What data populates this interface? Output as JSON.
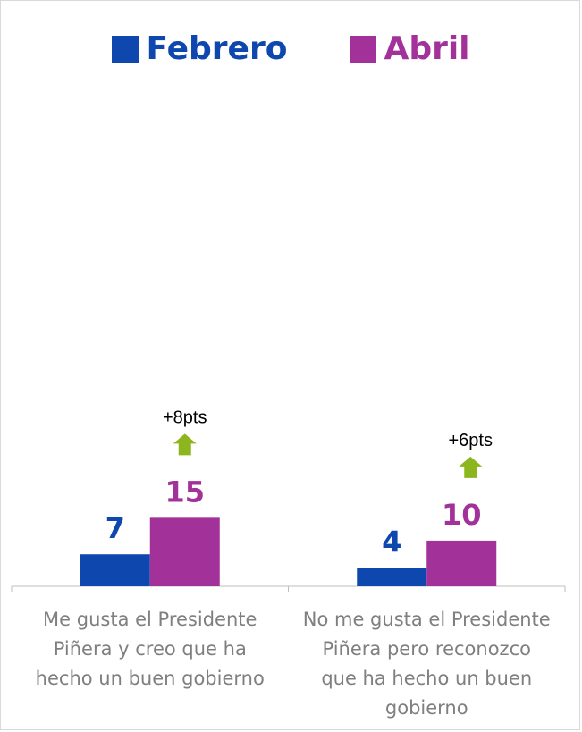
{
  "colors": {
    "febrero": "#0e47ad",
    "abril": "#a2319a",
    "arrow": "#8db51e",
    "axis": "#bfbfbf",
    "category_text": "#7f7f7f",
    "change_text": "#000000"
  },
  "icons": {
    "change": "up-arrow-icon"
  },
  "chart_data": {
    "type": "bar",
    "categories": [
      "Me gusta el Presidente Piñera y creo que ha hecho un buen gobierno",
      "No me gusta el Presidente Piñera pero reconozco que ha hecho un buen gobierno"
    ],
    "category_lines": [
      [
        "Me gusta el Presidente",
        "Piñera y creo que ha",
        "hecho un buen gobierno"
      ],
      [
        "No me gusta el Presidente",
        "Piñera pero reconozco",
        "que ha hecho un buen",
        "gobierno"
      ]
    ],
    "series": [
      {
        "name": "Febrero",
        "values": [
          7,
          4
        ]
      },
      {
        "name": "Abril",
        "values": [
          15,
          10
        ]
      }
    ],
    "annotations": [
      "+8pts",
      "+6pts"
    ],
    "ylim": [
      0,
      100
    ],
    "legend_position": "top",
    "grid": false
  }
}
